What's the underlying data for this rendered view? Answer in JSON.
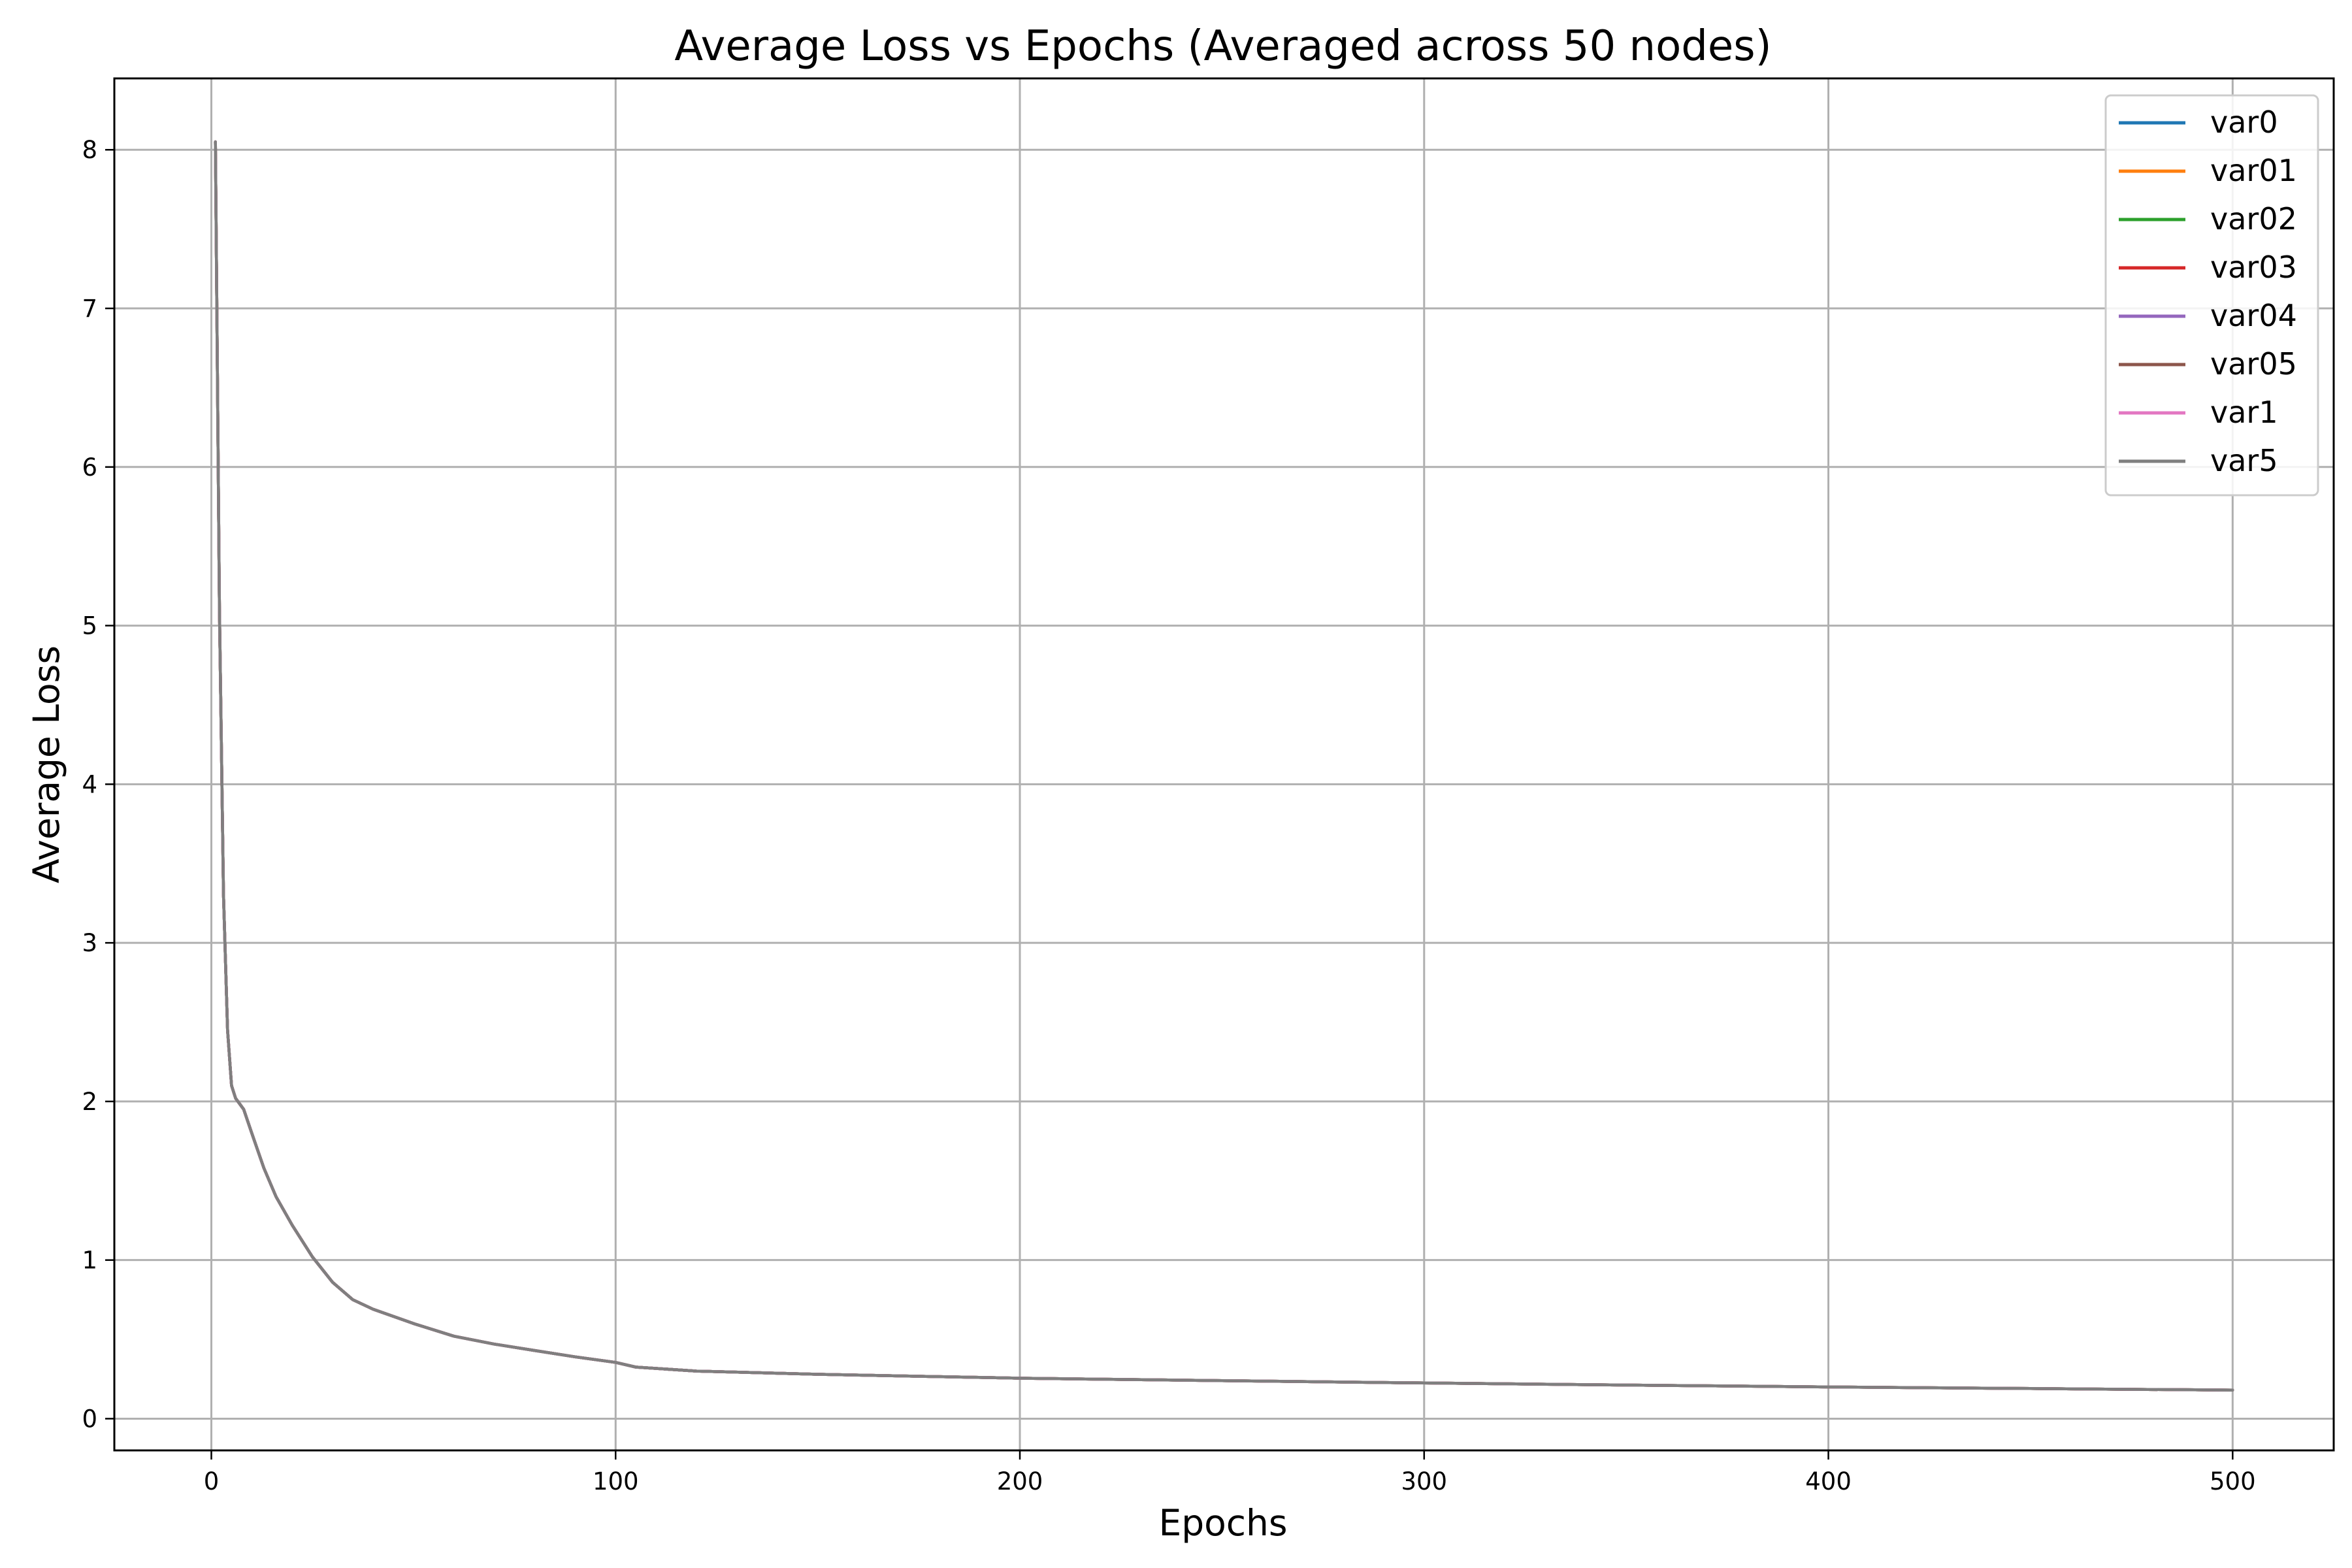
{
  "chart_data": {
    "type": "line",
    "title": "Average Loss vs Epochs (Averaged across 50 nodes)",
    "xlabel": "Epochs",
    "ylabel": "Average Loss",
    "xlim": [
      -24,
      525
    ],
    "ylim": [
      -0.2,
      8.45
    ],
    "xticks": [
      0,
      100,
      200,
      300,
      400,
      500
    ],
    "yticks": [
      0,
      1,
      2,
      3,
      4,
      5,
      6,
      7,
      8
    ],
    "grid": true,
    "legend_position": "top-right",
    "x": [
      1,
      2,
      3,
      4,
      5,
      6,
      8,
      10,
      13,
      16,
      20,
      25,
      30,
      35,
      40,
      50,
      60,
      70,
      80,
      90,
      100,
      105,
      120,
      150,
      200,
      250,
      300,
      350,
      400,
      450,
      500
    ],
    "series": [
      {
        "name": "var0",
        "color": "#1f77b4",
        "values": [
          8.05,
          5.1,
          3.3,
          2.45,
          2.1,
          2.02,
          1.95,
          1.8,
          1.58,
          1.4,
          1.22,
          1.02,
          0.86,
          0.75,
          0.69,
          0.6,
          0.52,
          0.47,
          0.43,
          0.39,
          0.355,
          0.325,
          0.3,
          0.28,
          0.255,
          0.24,
          0.225,
          0.212,
          0.2,
          0.19,
          0.18
        ]
      },
      {
        "name": "var01",
        "color": "#ff7f0e",
        "values": [
          8.05,
          5.1,
          3.3,
          2.45,
          2.1,
          2.02,
          1.95,
          1.8,
          1.58,
          1.4,
          1.22,
          1.02,
          0.86,
          0.75,
          0.69,
          0.6,
          0.52,
          0.47,
          0.43,
          0.39,
          0.355,
          0.325,
          0.3,
          0.28,
          0.255,
          0.24,
          0.225,
          0.212,
          0.2,
          0.19,
          0.18
        ]
      },
      {
        "name": "var02",
        "color": "#2ca02c",
        "values": [
          8.05,
          5.1,
          3.3,
          2.45,
          2.1,
          2.02,
          1.95,
          1.8,
          1.58,
          1.4,
          1.22,
          1.02,
          0.86,
          0.75,
          0.69,
          0.6,
          0.52,
          0.47,
          0.43,
          0.39,
          0.355,
          0.325,
          0.3,
          0.28,
          0.255,
          0.24,
          0.225,
          0.212,
          0.2,
          0.19,
          0.18
        ]
      },
      {
        "name": "var03",
        "color": "#d62728",
        "values": [
          8.05,
          5.1,
          3.3,
          2.45,
          2.1,
          2.02,
          1.95,
          1.8,
          1.58,
          1.4,
          1.22,
          1.02,
          0.86,
          0.75,
          0.69,
          0.6,
          0.52,
          0.47,
          0.43,
          0.39,
          0.355,
          0.325,
          0.3,
          0.28,
          0.255,
          0.24,
          0.225,
          0.212,
          0.2,
          0.19,
          0.18
        ]
      },
      {
        "name": "var04",
        "color": "#9467bd",
        "values": [
          8.05,
          5.1,
          3.3,
          2.45,
          2.1,
          2.02,
          1.95,
          1.8,
          1.58,
          1.4,
          1.22,
          1.02,
          0.86,
          0.75,
          0.69,
          0.6,
          0.52,
          0.47,
          0.43,
          0.39,
          0.355,
          0.325,
          0.3,
          0.28,
          0.255,
          0.24,
          0.225,
          0.212,
          0.2,
          0.19,
          0.18
        ]
      },
      {
        "name": "var05",
        "color": "#8c564b",
        "values": [
          8.05,
          5.1,
          3.3,
          2.45,
          2.1,
          2.02,
          1.95,
          1.8,
          1.58,
          1.4,
          1.22,
          1.02,
          0.86,
          0.75,
          0.69,
          0.6,
          0.52,
          0.47,
          0.43,
          0.39,
          0.355,
          0.325,
          0.3,
          0.28,
          0.255,
          0.24,
          0.225,
          0.212,
          0.2,
          0.19,
          0.18
        ]
      },
      {
        "name": "var1",
        "color": "#e377c2",
        "values": [
          8.05,
          5.1,
          3.3,
          2.45,
          2.1,
          2.02,
          1.95,
          1.8,
          1.58,
          1.4,
          1.22,
          1.02,
          0.86,
          0.75,
          0.69,
          0.6,
          0.52,
          0.47,
          0.43,
          0.39,
          0.355,
          0.325,
          0.3,
          0.28,
          0.255,
          0.24,
          0.225,
          0.212,
          0.2,
          0.19,
          0.18
        ]
      },
      {
        "name": "var5",
        "color": "#7f7f7f",
        "values": [
          8.05,
          5.1,
          3.3,
          2.45,
          2.1,
          2.02,
          1.95,
          1.8,
          1.58,
          1.4,
          1.22,
          1.02,
          0.86,
          0.75,
          0.69,
          0.6,
          0.52,
          0.47,
          0.43,
          0.39,
          0.355,
          0.325,
          0.3,
          0.28,
          0.255,
          0.24,
          0.225,
          0.212,
          0.2,
          0.19,
          0.18
        ]
      }
    ]
  }
}
